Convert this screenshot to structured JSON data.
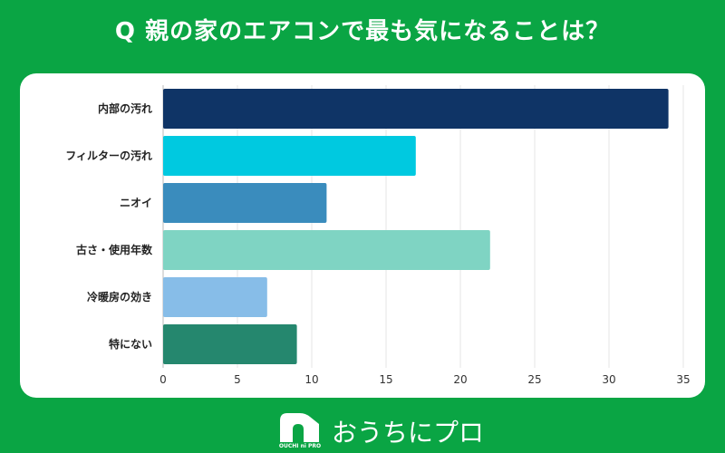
{
  "title": "Q 親の家のエアコンで最も気になることは？",
  "chart_data": {
    "type": "bar",
    "orientation": "horizontal",
    "categories": [
      "内部の汚れ",
      "フィルターの汚れ",
      "ニオイ",
      "古さ・使用年数",
      "冷暖房の効き",
      "特にない"
    ],
    "values": [
      34,
      17,
      11,
      22,
      7,
      9
    ],
    "colors": [
      "#0f3466",
      "#00c9e0",
      "#3a8cbd",
      "#7fd4c3",
      "#87bde8",
      "#25876e"
    ],
    "xlim": [
      0,
      35
    ],
    "xticks": [
      "0",
      "5",
      "10",
      "15",
      "20",
      "25",
      "30",
      "35"
    ],
    "grid": true
  },
  "footer": {
    "logo_text": "おうちにプロ",
    "logo_sub": "OUCHI ni PRO",
    "logo_icon": "house-icon"
  }
}
